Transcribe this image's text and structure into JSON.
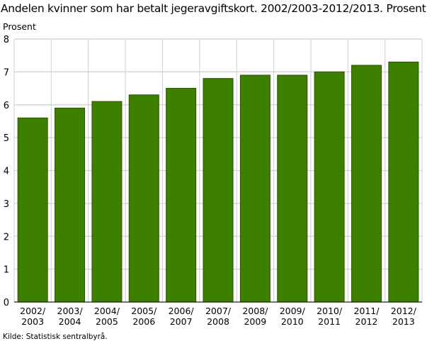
{
  "chart_data": {
    "type": "bar",
    "title": "Andelen kvinner som har betalt jegeravgiftskort. 2002/2003-2012/2013. Prosent",
    "ylabel": "Prosent",
    "xlabel": "",
    "categories": [
      [
        "2002/",
        "2003"
      ],
      [
        "2003/",
        "2004"
      ],
      [
        "2004/",
        "2005"
      ],
      [
        "2005/",
        "2006"
      ],
      [
        "2006/",
        "2007"
      ],
      [
        "2007/",
        "2008"
      ],
      [
        "2008/",
        "2009"
      ],
      [
        "2009/",
        "2010"
      ],
      [
        "2010/",
        "2011"
      ],
      [
        "2011/",
        "2012"
      ],
      [
        "2012/",
        "2013"
      ]
    ],
    "values": [
      5.6,
      5.9,
      6.1,
      6.3,
      6.5,
      6.8,
      6.9,
      6.9,
      7.0,
      7.2,
      7.3
    ],
    "ylim": [
      0,
      8
    ],
    "yticks": [
      0,
      1,
      2,
      3,
      4,
      5,
      6,
      7,
      8
    ],
    "grid": true,
    "bar_color": "#3d8000",
    "source": "Kilde: Statistisk sentralbyrå."
  }
}
